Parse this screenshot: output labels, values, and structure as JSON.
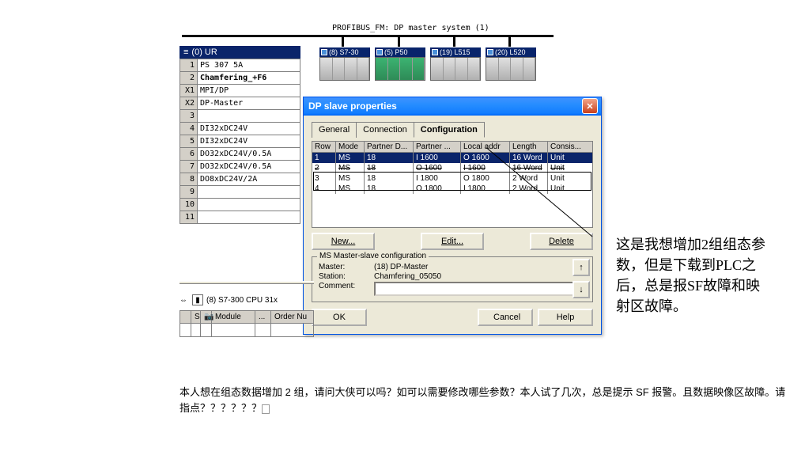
{
  "bus_label": "PROFIBUS_FM: DP master system (1)",
  "rack": {
    "title": "(0) UR",
    "rows": [
      {
        "n": "1",
        "v": "PS 307 5A",
        "bold": false
      },
      {
        "n": "2",
        "v": "Chamfering_+F6",
        "bold": true
      },
      {
        "n": "X1",
        "v": "MPI/DP",
        "bold": false
      },
      {
        "n": "X2",
        "v": "DP-Master",
        "bold": false
      },
      {
        "n": "3",
        "v": "",
        "bold": false
      },
      {
        "n": "4",
        "v": "DI32xDC24V",
        "bold": false
      },
      {
        "n": "5",
        "v": "DI32xDC24V",
        "bold": false
      },
      {
        "n": "6",
        "v": "DO32xDC24V/0.5A",
        "bold": false
      },
      {
        "n": "7",
        "v": "DO32xDC24V/0.5A",
        "bold": false
      },
      {
        "n": "8",
        "v": "DO8xDC24V/2A",
        "bold": false
      },
      {
        "n": "9",
        "v": "",
        "bold": false
      },
      {
        "n": "10",
        "v": "",
        "bold": false
      },
      {
        "n": "11",
        "v": "",
        "bold": false
      }
    ]
  },
  "devices": [
    {
      "label": "(8) S7-30",
      "green": false
    },
    {
      "label": "(5) P50",
      "green": true
    },
    {
      "label": "(19) L515",
      "green": false
    },
    {
      "label": "(20) L520",
      "green": false
    }
  ],
  "dialog": {
    "title": "DP slave properties",
    "tabs": [
      "General",
      "Connection",
      "Configuration"
    ],
    "active_tab": 2,
    "cols": [
      "Row",
      "Mode",
      "Partner D...",
      "Partner ...",
      "Local addr",
      "Length",
      "Consis..."
    ],
    "rows": [
      {
        "r": "1",
        "mode": "MS",
        "pd": "18",
        "pa": "I 1600",
        "la": "O 1600",
        "len": "16 Word",
        "con": "Unit",
        "sel": true
      },
      {
        "r": "2",
        "mode": "MS",
        "pd": "18",
        "pa": "O 1600",
        "la": "I 1600",
        "len": "16 Word",
        "con": "Unit",
        "strike": true
      },
      {
        "r": "3",
        "mode": "MS",
        "pd": "18",
        "pa": "I 1800",
        "la": "O 1800",
        "len": "2 Word",
        "con": "Unit"
      },
      {
        "r": "4",
        "mode": "MS",
        "pd": "18",
        "pa": "O 1800",
        "la": "I 1800",
        "len": "2 Word",
        "con": "Unit"
      }
    ],
    "btn_new": "New...",
    "btn_edit": "Edit...",
    "btn_del": "Delete",
    "group_title": "MS Master-slave configuration",
    "master_k": "Master:",
    "master_v": "(18) DP-Master",
    "station_k": "Station:",
    "station_v": "Chamfering_05050",
    "comment_k": "Comment:",
    "ok": "OK",
    "cancel": "Cancel",
    "help": "Help"
  },
  "bl": {
    "label": "(8)  S7-300 CPU 31x",
    "c1": "Module",
    "c2": "...",
    "c3": "Order Nu"
  },
  "anno": "这是我想增加2组组态参数，但是下载到PLC之后，总是报SF故障和映射区故障。",
  "bottom_q": "本人想在组态数据增加 2 组，请问大侠可以吗？如可以需要修改哪些参数？本人试了几次，总是提示 SF 报警。且数据映像区故障。请指点？？？？？？"
}
